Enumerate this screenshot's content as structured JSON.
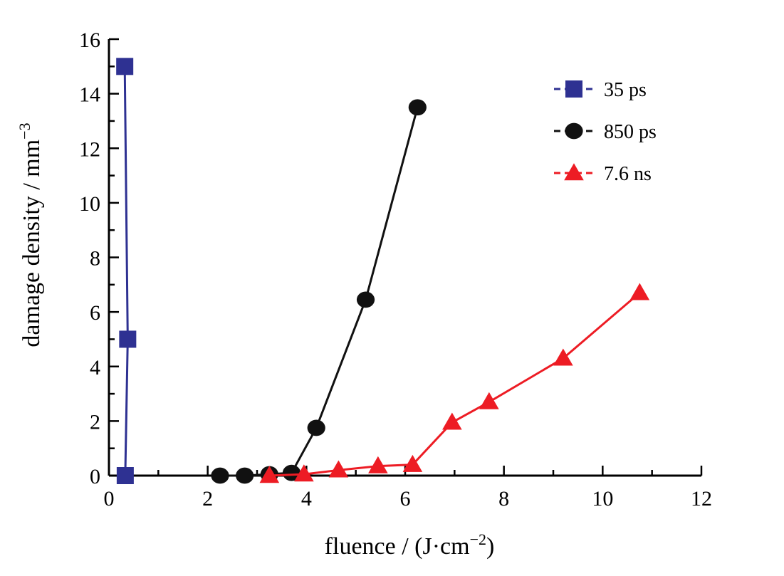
{
  "chart_data": {
    "type": "line",
    "xlabel": "fluence / (J·cm",
    "xlabel_sup": "−2",
    "xlabel_tail": ")",
    "ylabel": "damage density / mm",
    "ylabel_sup": "−3",
    "xlim": [
      0,
      12
    ],
    "ylim": [
      0,
      16
    ],
    "x_ticks": [
      "0",
      "2",
      "4",
      "6",
      "8",
      "10",
      "12"
    ],
    "y_ticks": [
      "0",
      "2",
      "4",
      "6",
      "8",
      "10",
      "12",
      "14",
      "16"
    ],
    "grid": false,
    "legend_position": "top-right",
    "series": [
      {
        "name": "35 ps",
        "color": "#2e3192",
        "marker": "square",
        "points": [
          [
            0.32,
            15.0
          ],
          [
            0.38,
            5.0
          ],
          [
            0.33,
            0.0
          ]
        ]
      },
      {
        "name": "850 ps",
        "color": "#111111",
        "marker": "circle",
        "points": [
          [
            2.25,
            0.0
          ],
          [
            2.75,
            0.0
          ],
          [
            3.25,
            0.05
          ],
          [
            3.7,
            0.1
          ],
          [
            4.2,
            1.75
          ],
          [
            5.2,
            6.45
          ],
          [
            6.25,
            13.5
          ]
        ]
      },
      {
        "name": "7.6 ns",
        "color": "#ed1c24",
        "marker": "triangle",
        "points": [
          [
            3.25,
            0.0
          ],
          [
            3.95,
            0.05
          ],
          [
            4.65,
            0.2
          ],
          [
            5.45,
            0.35
          ],
          [
            6.15,
            0.4
          ],
          [
            6.95,
            1.95
          ],
          [
            7.7,
            2.7
          ],
          [
            9.2,
            4.3
          ],
          [
            10.75,
            6.7
          ]
        ]
      }
    ]
  }
}
